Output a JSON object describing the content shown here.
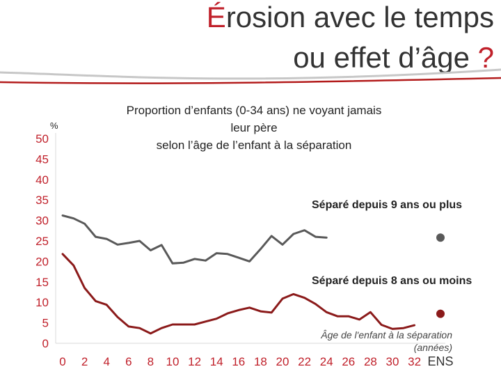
{
  "slide": {
    "title_accent_char": "É",
    "title_line1_rest": "rosion avec le temps",
    "title_line2": "ou effet d’âge ",
    "title_question": "?",
    "subtitle_line1": "Proportion d’enfants (0-34 ans) ne voyant jamais",
    "subtitle_line2": "leur père",
    "subtitle_line3": "selon l’âge de l’enfant à la séparation",
    "unit": "%",
    "series1_label": "Séparé depuis 9 ans ou plus",
    "series2_label": "Séparé depuis 8 ans ou moins",
    "xnote_line1": "Âge de l'enfant à la séparation",
    "xnote_line2": "(années)"
  },
  "colors": {
    "series1": "#595959",
    "series2": "#8b1a1a",
    "accent": "#c0202a",
    "text": "#333333"
  },
  "chart_data": {
    "type": "line",
    "title": "Proportion d’enfants (0-34 ans) ne voyant jamais leur père selon l’âge de l’enfant à la séparation",
    "xlabel": "Âge de l'enfant à la séparation (années)",
    "ylabel": "%",
    "ylim": [
      0,
      50
    ],
    "yticks": [
      0,
      5,
      10,
      15,
      20,
      25,
      30,
      35,
      40,
      45,
      50
    ],
    "xlim": [
      0,
      32
    ],
    "xticks": [
      0,
      2,
      4,
      6,
      8,
      10,
      12,
      14,
      16,
      18,
      20,
      22,
      24,
      26,
      28,
      30,
      32
    ],
    "extra_category": "ENS",
    "grid": false,
    "series": [
      {
        "name": "Séparé depuis 9 ans ou plus",
        "x": [
          0,
          1,
          2,
          3,
          4,
          5,
          6,
          7,
          8,
          9,
          10,
          11,
          12,
          13,
          14,
          15,
          16,
          17,
          18,
          19,
          20,
          21,
          22,
          23,
          24
        ],
        "values": [
          31.2,
          30.5,
          29.2,
          26,
          25.5,
          24.1,
          24.5,
          25,
          22.7,
          24,
          19.5,
          19.7,
          20.6,
          20.2,
          22,
          21.8,
          20.9,
          20,
          23,
          26.2,
          24.1,
          26.7,
          27.6,
          26,
          25.8
        ],
        "ens_value": 25.8
      },
      {
        "name": "Séparé depuis 8 ans ou moins",
        "x": [
          0,
          1,
          2,
          3,
          4,
          5,
          6,
          7,
          8,
          9,
          10,
          11,
          12,
          13,
          14,
          15,
          16,
          17,
          18,
          19,
          20,
          21,
          22,
          23,
          24,
          25,
          26,
          27,
          28,
          29,
          30,
          31,
          32
        ],
        "values": [
          21.8,
          19,
          13.5,
          10.3,
          9.4,
          6.4,
          4.1,
          3.7,
          2.4,
          3.7,
          4.6,
          4.6,
          4.6,
          5.3,
          6,
          7.3,
          8.1,
          8.7,
          7.8,
          7.5,
          10.9,
          12,
          11.1,
          9.6,
          7.6,
          6.6,
          6.6,
          5.8,
          7.6,
          4.5,
          3.5,
          3.7,
          4.4
        ],
        "ens_value": 7.2
      }
    ]
  }
}
